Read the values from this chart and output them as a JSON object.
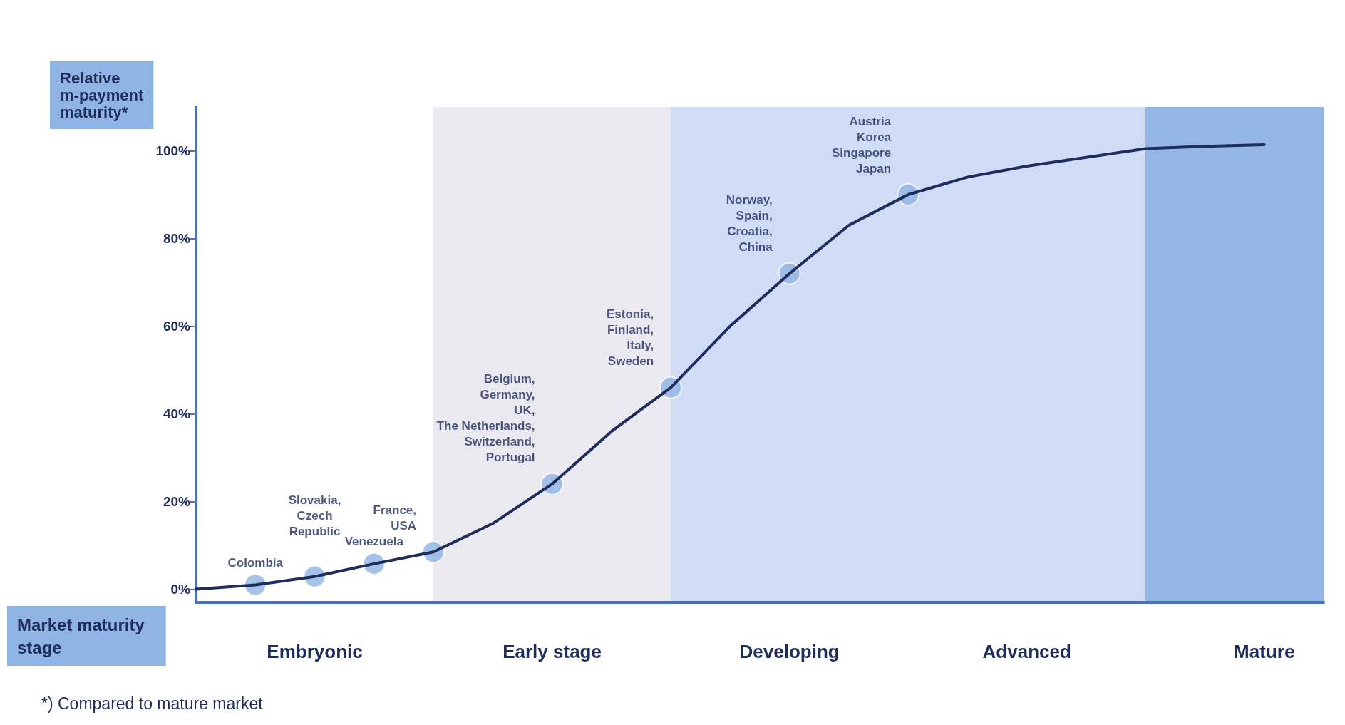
{
  "chart_data": {
    "type": "line",
    "xlabel": "Market maturity\nstage",
    "ylabel": "Relative\nm-payment\nmaturity*",
    "categories": [
      null,
      null,
      "Embryonic",
      null,
      null,
      null,
      "Early stage",
      null,
      null,
      null,
      "Developing",
      null,
      null,
      null,
      "Advanced",
      null,
      null,
      null,
      "Mature",
      null
    ],
    "series": [
      {
        "color": "#1f2d5c",
        "values": [
          0,
          1,
          2.9,
          5.8,
          8.5,
          15,
          24,
          36,
          46,
          60,
          72,
          83,
          90,
          94,
          96.5,
          98.5,
          100.5,
          101,
          101.4,
          null
        ]
      },
      {
        "type": "scatter",
        "color": "#8fb4e3",
        "marker": "circle",
        "values": [
          null,
          1,
          2.9,
          5.8,
          8.5,
          null,
          24,
          null,
          46,
          null,
          72,
          null,
          90,
          null,
          null,
          null,
          null,
          null,
          null,
          null
        ],
        "value_labels": [
          null,
          "Colombia",
          "Slovakia,\nCzech\nRepublic",
          "Venezuela",
          "France,\nUSA",
          null,
          "Belgium,\nGermany,\nUK,\nThe Netherlands,\nSwitzerland,\nPortugal",
          null,
          "Estonia,\nFinland,\nItaly,\nSweden",
          null,
          "Norway,\nSpain,\nCroatia,\nChina",
          null,
          "Austria\nKorea\nSingapore\nJapan",
          null,
          null,
          null,
          null,
          null,
          null,
          null
        ]
      }
    ],
    "ylim": [
      -3,
      110
    ],
    "yticks": [
      {
        "value": 0,
        "label": "0%"
      },
      {
        "value": 20,
        "label": "20%"
      },
      {
        "value": 40,
        "label": "40%"
      },
      {
        "value": 60,
        "label": "60%"
      },
      {
        "value": 80,
        "label": "80%"
      },
      {
        "value": 100,
        "label": "100%"
      }
    ],
    "grid": false,
    "marker": "none",
    "line_style": "solid",
    "annotations": [
      "*) Compared to mature market"
    ]
  }
}
